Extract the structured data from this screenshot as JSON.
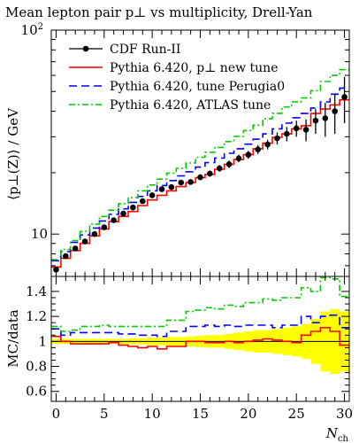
{
  "chart_data": {
    "type": "line",
    "title": "Mean lepton pair p⊥ vs multiplicity, Drell-Yan",
    "xlabel": "N_ch",
    "x_tick_labels": [
      "0",
      "5",
      "10",
      "15",
      "20",
      "25",
      "30"
    ],
    "xlim": [
      -0.5,
      30.5
    ],
    "upper": {
      "ylabel": "⟨p⊥(Z)⟩ / GeV",
      "yscale": "log",
      "ylim": [
        6.2,
        100
      ],
      "y_tick_labels": [
        "10",
        "10²"
      ],
      "legend_placement": "top-left",
      "series": [
        {
          "name": "CDF Run-II",
          "style": "points",
          "color": "#000000",
          "x": [
            0,
            1,
            2,
            3,
            4,
            5,
            6,
            7,
            8,
            9,
            10,
            11,
            12,
            13,
            14,
            15,
            16,
            17,
            18,
            19,
            20,
            21,
            22,
            23,
            24,
            25,
            26,
            27,
            28,
            29,
            30
          ],
          "y": [
            6.7,
            7.8,
            8.5,
            9.2,
            10.0,
            10.8,
            11.7,
            12.6,
            13.5,
            14.5,
            15.5,
            16.6,
            17.0,
            17.9,
            18.0,
            19.0,
            19.8,
            21.0,
            22.0,
            23.5,
            24.5,
            26.0,
            27.5,
            29.5,
            31.0,
            33.0,
            32.5,
            36.0,
            37.0,
            40.0,
            47.0
          ],
          "err": [
            0.2,
            0.2,
            0.2,
            0.2,
            0.2,
            0.2,
            0.2,
            0.3,
            0.3,
            0.3,
            0.3,
            0.4,
            0.4,
            0.5,
            0.5,
            0.6,
            0.7,
            0.8,
            0.9,
            1.0,
            1.1,
            1.3,
            1.5,
            2.0,
            2.5,
            3.0,
            4.0,
            5.0,
            7.0,
            9.0,
            12.0
          ]
        },
        {
          "name": "Pythia 6.420, p⊥ new tune",
          "style": "solid",
          "color": "#ff0000",
          "y": [
            6.9,
            7.6,
            8.3,
            9.0,
            9.8,
            10.6,
            11.5,
            12.2,
            12.9,
            13.8,
            14.7,
            15.5,
            16.3,
            17.1,
            17.9,
            18.9,
            19.6,
            20.8,
            22.0,
            23.2,
            24.5,
            26.2,
            27.9,
            29.8,
            31.0,
            32.8,
            34.0,
            39.0,
            41.0,
            43.0,
            45.5
          ]
        },
        {
          "name": "Pythia 6.420, tune Perugia0",
          "style": "dashed",
          "color": "#0000ff",
          "y": [
            7.4,
            8.2,
            9.1,
            9.9,
            10.7,
            11.6,
            12.5,
            13.3,
            14.3,
            15.3,
            16.3,
            17.3,
            18.3,
            19.3,
            20.2,
            21.3,
            22.4,
            23.6,
            24.9,
            26.2,
            27.6,
            29.2,
            31.0,
            32.8,
            35.0,
            37.2,
            39.0,
            41.5,
            44.5,
            48.5,
            52.0
          ]
        },
        {
          "name": "Pythia 6.420, ATLAS tune",
          "style": "dashdot",
          "color": "#00cc00",
          "y": [
            7.5,
            8.4,
            9.3,
            10.3,
            11.2,
            12.2,
            13.1,
            14.1,
            15.1,
            16.3,
            17.4,
            18.6,
            19.9,
            21.0,
            22.3,
            23.8,
            25.2,
            26.6,
            28.4,
            30.1,
            32.2,
            34.2,
            36.8,
            39.1,
            42.0,
            44.5,
            46.5,
            50.5,
            56.0,
            60.0,
            64.0
          ]
        }
      ]
    },
    "ratio": {
      "ylabel": "MC/data",
      "ylim": [
        0.52,
        1.52
      ],
      "y_tick_labels": [
        "0.6",
        "0.8",
        "1",
        "1.2",
        "1.4"
      ],
      "reference": 1.0,
      "data_band": {
        "color": "#ffff00",
        "half_width": [
          0.02,
          0.02,
          0.02,
          0.02,
          0.02,
          0.02,
          0.02,
          0.02,
          0.025,
          0.025,
          0.03,
          0.03,
          0.035,
          0.035,
          0.04,
          0.045,
          0.05,
          0.05,
          0.06,
          0.07,
          0.08,
          0.09,
          0.09,
          0.1,
          0.11,
          0.12,
          0.14,
          0.18,
          0.24,
          0.26,
          0.24
        ]
      },
      "series": [
        {
          "name": "Pythia 6.420, p⊥ new tune",
          "style": "solid",
          "color": "#ff0000",
          "y": [
            1.04,
            1.0,
            0.98,
            0.98,
            0.98,
            0.98,
            0.99,
            0.97,
            0.96,
            0.95,
            0.96,
            0.94,
            0.96,
            0.96,
            1.0,
            1.0,
            0.99,
            0.99,
            1.0,
            0.99,
            1.0,
            1.01,
            1.02,
            1.01,
            1.0,
            0.99,
            1.05,
            1.08,
            1.11,
            1.08,
            0.97
          ]
        },
        {
          "name": "Pythia 6.420, tune Perugia0",
          "style": "dashed",
          "color": "#0000ff",
          "y": [
            1.1,
            1.05,
            1.07,
            1.07,
            1.07,
            1.07,
            1.07,
            1.06,
            1.06,
            1.05,
            1.05,
            1.04,
            1.08,
            1.08,
            1.12,
            1.12,
            1.13,
            1.12,
            1.13,
            1.12,
            1.13,
            1.13,
            1.13,
            1.11,
            1.13,
            1.13,
            1.2,
            1.15,
            1.2,
            1.21,
            1.11
          ]
        },
        {
          "name": "Pythia 6.420, ATLAS tune",
          "style": "dashdot",
          "color": "#00cc00",
          "y": [
            1.12,
            1.08,
            1.09,
            1.12,
            1.12,
            1.13,
            1.12,
            1.12,
            1.12,
            1.12,
            1.12,
            1.12,
            1.17,
            1.17,
            1.24,
            1.25,
            1.27,
            1.26,
            1.29,
            1.28,
            1.31,
            1.31,
            1.34,
            1.33,
            1.35,
            1.35,
            1.43,
            1.4,
            1.51,
            1.5,
            1.36
          ]
        }
      ]
    }
  }
}
